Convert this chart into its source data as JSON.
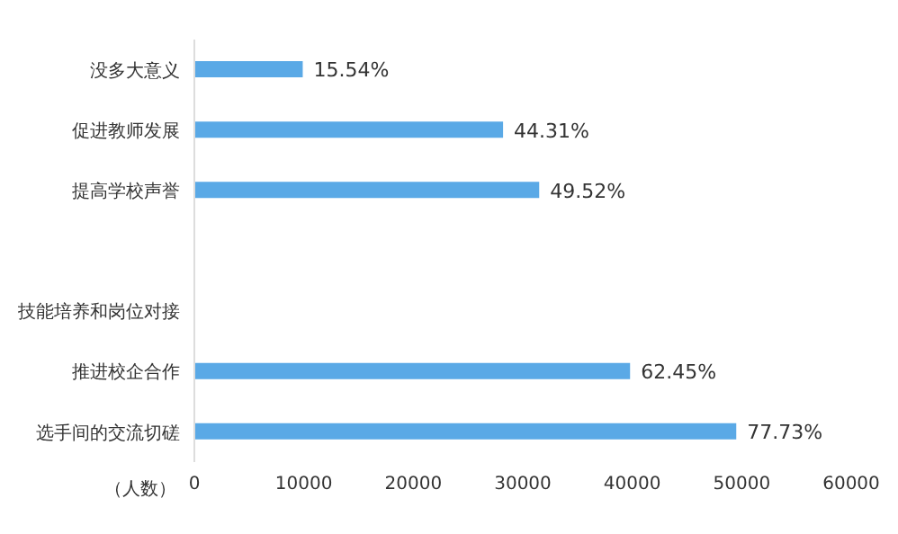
{
  "chart_data": {
    "type": "bar",
    "orientation": "horizontal",
    "xlabel": "（人数）",
    "categories": [
      "没多大意义",
      "促进教师发展",
      "提高学校声誉",
      null,
      "技能培养和岗位对接",
      "推进校企合作",
      "选手间的交流切磋"
    ],
    "values": [
      9900,
      28200,
      31500,
      null,
      null,
      39800,
      49500
    ],
    "annotations": [
      {
        "text": "15.54%",
        "x": 9900,
        "y": "没多大意义"
      },
      {
        "text": "44.31%",
        "x": 28200,
        "y": "促进教师发展"
      },
      {
        "text": "49.52%",
        "x": 31500,
        "y": "提高学校声誉"
      },
      {
        "text": "62.45%",
        "x": 39800,
        "y": "推进校企合作"
      },
      {
        "text": "77.73%",
        "x": 49500,
        "y": "选手间的交流切磋"
      }
    ],
    "color": "#5aa9e6",
    "xlim": [
      0,
      60000
    ],
    "xticks": [
      0,
      10000,
      20000,
      30000,
      40000,
      50000,
      60000
    ],
    "grid": false,
    "legend": false
  }
}
